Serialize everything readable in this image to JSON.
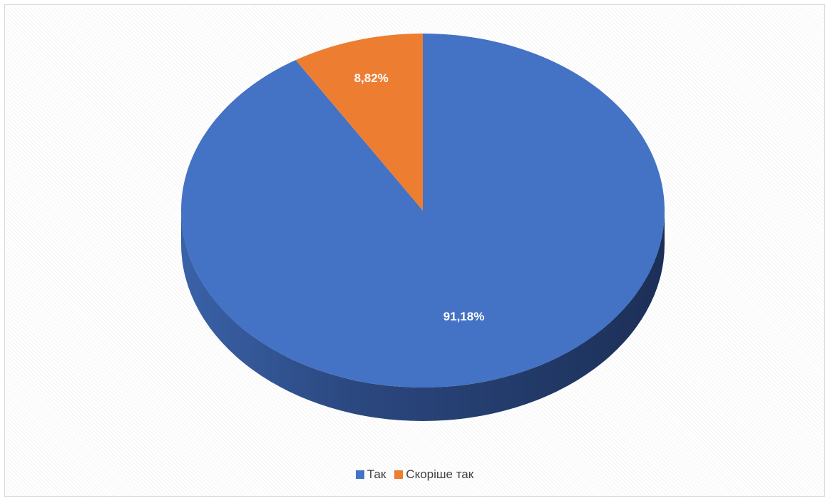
{
  "chart_data": {
    "type": "pie",
    "style": "3d",
    "title": "",
    "legend_position": "bottom",
    "categories": [
      "Так",
      "Скоріше так"
    ],
    "values": [
      91.18,
      8.82
    ],
    "data_labels": [
      "91,18%",
      "8,82%"
    ],
    "colors": [
      "#4472C4",
      "#ED7D31"
    ],
    "side_colors": [
      "#2F4F8F",
      "#B45E20"
    ]
  }
}
